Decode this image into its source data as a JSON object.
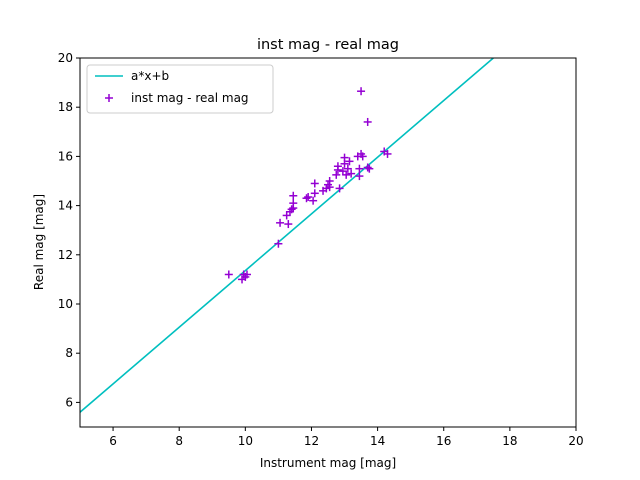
{
  "chart_data": {
    "type": "scatter",
    "title": "inst mag - real mag",
    "xlabel": "Instrument mag [mag]",
    "ylabel": "Real mag [mag]",
    "xlim": [
      5,
      20
    ],
    "ylim": [
      5,
      20
    ],
    "xticks": [
      6,
      8,
      10,
      12,
      14,
      16,
      18,
      20
    ],
    "yticks": [
      6,
      8,
      10,
      12,
      14,
      16,
      18,
      20
    ],
    "grid": false,
    "legend_position": "top-left",
    "fit_line": {
      "name": "a*x+b",
      "color": "#00bfbf",
      "x": [
        5,
        17.5
      ],
      "y": [
        5.6,
        20.0
      ]
    },
    "series": [
      {
        "name": "inst mag - real mag",
        "color": "#9400d3",
        "marker": "plus",
        "points": [
          [
            9.5,
            11.2
          ],
          [
            9.9,
            11.0
          ],
          [
            9.95,
            11.2
          ],
          [
            10.0,
            11.1
          ],
          [
            10.05,
            11.2
          ],
          [
            11.0,
            12.45
          ],
          [
            11.05,
            13.3
          ],
          [
            11.25,
            13.6
          ],
          [
            11.3,
            13.25
          ],
          [
            11.35,
            13.75
          ],
          [
            11.4,
            13.85
          ],
          [
            11.45,
            13.9
          ],
          [
            11.45,
            14.1
          ],
          [
            11.45,
            14.4
          ],
          [
            11.85,
            14.3
          ],
          [
            11.9,
            14.35
          ],
          [
            12.05,
            14.2
          ],
          [
            12.1,
            14.5
          ],
          [
            12.1,
            14.9
          ],
          [
            12.35,
            14.6
          ],
          [
            12.45,
            14.7
          ],
          [
            12.5,
            14.85
          ],
          [
            12.55,
            15.0
          ],
          [
            12.55,
            14.75
          ],
          [
            12.75,
            15.25
          ],
          [
            12.8,
            15.45
          ],
          [
            12.8,
            15.6
          ],
          [
            12.85,
            14.7
          ],
          [
            12.95,
            15.4
          ],
          [
            13.0,
            15.7
          ],
          [
            13.0,
            15.95
          ],
          [
            13.05,
            15.25
          ],
          [
            13.1,
            15.5
          ],
          [
            13.15,
            15.8
          ],
          [
            13.2,
            15.3
          ],
          [
            13.4,
            16.0
          ],
          [
            13.45,
            15.2
          ],
          [
            13.45,
            15.5
          ],
          [
            13.5,
            16.1
          ],
          [
            13.55,
            16.0
          ],
          [
            13.5,
            18.65
          ],
          [
            13.7,
            15.55
          ],
          [
            13.7,
            17.4
          ],
          [
            13.75,
            15.5
          ],
          [
            14.2,
            16.2
          ],
          [
            14.3,
            16.1
          ]
        ]
      }
    ]
  }
}
